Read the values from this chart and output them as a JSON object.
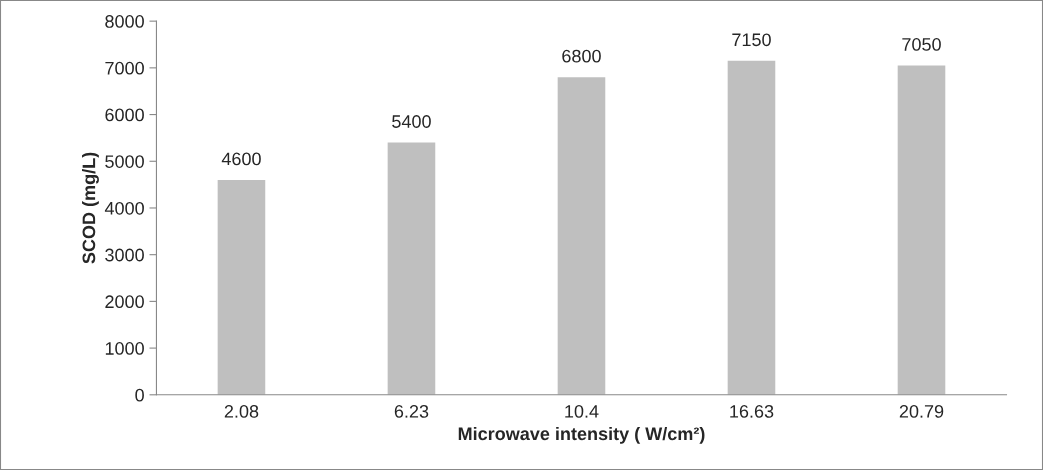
{
  "chart_data": {
    "type": "bar",
    "xlabel": "Microwave intensity ( W/cm²)",
    "ylabel": "SCOD (mg/L)",
    "categories": [
      "2.08",
      "6.23",
      "10.4",
      "16.63",
      "20.79"
    ],
    "values": [
      4600,
      5400,
      6800,
      7150,
      7050
    ],
    "color": "#bfbfbf",
    "ylim": [
      0,
      8000
    ],
    "yticks": [
      0,
      1000,
      2000,
      3000,
      4000,
      5000,
      6000,
      7000,
      8000
    ],
    "data_labels": true,
    "grid": false,
    "legend": false
  }
}
